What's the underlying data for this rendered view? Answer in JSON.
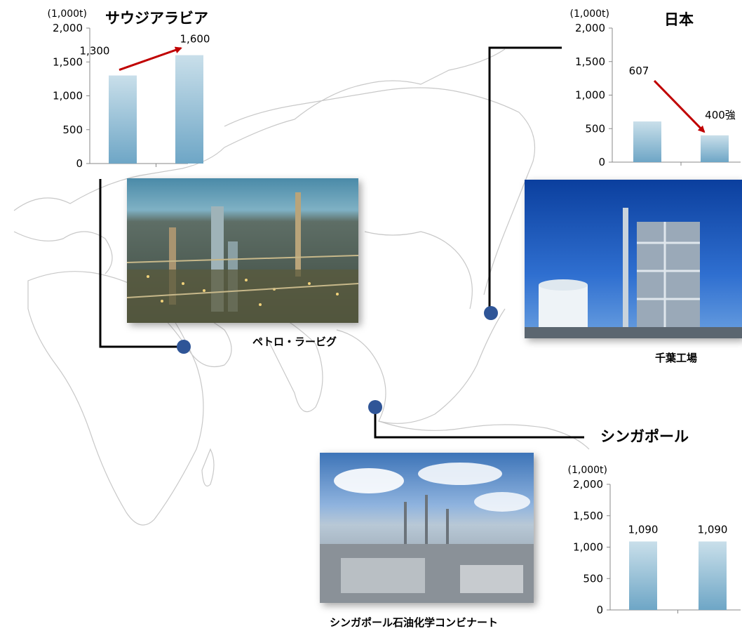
{
  "colors": {
    "bar_top": "#c9dfea",
    "bar_bottom": "#6ea6c6",
    "arrow": "#c00000",
    "dot": "#2f5597",
    "line": "#000000",
    "map": "#c8c8c8"
  },
  "captions": {
    "petro_rabigh": "ペトロ・ラービグ",
    "chiba": "千葉工場",
    "singapore_complex": "シンガポール石油化学コンビナート"
  },
  "chart_data": [
    {
      "type": "bar",
      "title": "サウジアラビア",
      "unit": "(1,000t)",
      "categories": [
        "",
        ""
      ],
      "values": [
        1300,
        1600
      ],
      "value_labels": [
        "1,300",
        "1,600"
      ],
      "ylim": [
        0,
        2000
      ],
      "yticks": [
        "0",
        "500",
        "1,000",
        "1,500",
        "2,000"
      ],
      "trend": "up"
    },
    {
      "type": "bar",
      "title": "日本",
      "unit": "(1,000t)",
      "categories": [
        "",
        ""
      ],
      "values": [
        607,
        400
      ],
      "value_labels": [
        "607",
        "400強"
      ],
      "ylim": [
        0,
        2000
      ],
      "yticks": [
        "0",
        "500",
        "1,000",
        "1,500",
        "2,000"
      ],
      "trend": "down"
    },
    {
      "type": "bar",
      "title": "シンガポール",
      "unit": "(1,000t)",
      "categories": [
        "",
        ""
      ],
      "values": [
        1090,
        1090
      ],
      "value_labels": [
        "1,090",
        "1,090"
      ],
      "ylim": [
        0,
        2000
      ],
      "yticks": [
        "0",
        "500",
        "1,000",
        "1,500",
        "2,000"
      ],
      "trend": "none"
    }
  ]
}
